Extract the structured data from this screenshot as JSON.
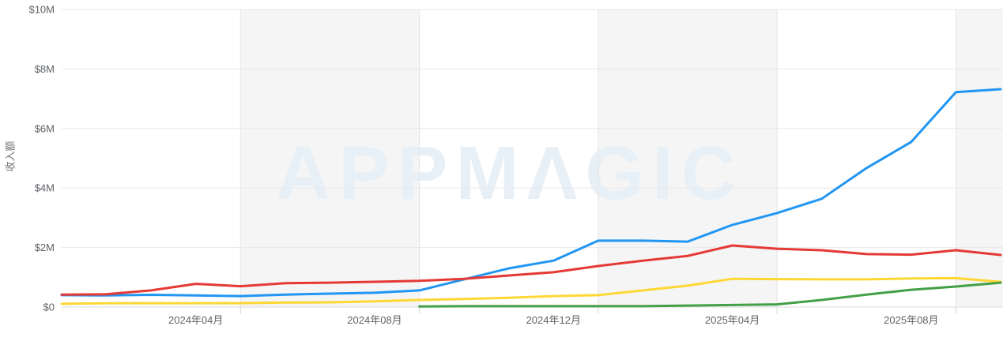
{
  "watermark": {
    "text": "APPMΛGIC",
    "color": "#E8F0F7"
  },
  "axis_style": {
    "tick_label_color": "#5F6368",
    "grid_color": "#E8E8E8",
    "v_grid_color": "#E4E4E4",
    "axis_line_color": "#DBDBDB",
    "tick_mark_color": "#D6D6D6"
  },
  "chart_data": {
    "type": "line",
    "title": "",
    "xlabel": "",
    "ylabel": "收入额",
    "ylim": [
      0,
      10
    ],
    "grid": true,
    "legend": "none",
    "band_color": "#F5F5F5",
    "band_start_indices": [
      4,
      12,
      20
    ],
    "band_span_months": 4,
    "v_gridline_indices": [
      4,
      8,
      12,
      16,
      20
    ],
    "x": [
      "2024年01月",
      "2024年02月",
      "2024年03月",
      "2024年04月",
      "2024年05月",
      "2024年06月",
      "2024年07月",
      "2024年08月",
      "2024年09月",
      "2024年10月",
      "2024年11月",
      "2024年12月",
      "2025年01月",
      "2025年02月",
      "2025年03月",
      "2025年04月",
      "2025年05月",
      "2025年06月",
      "2025年07月",
      "2025年08月",
      "2025年09月",
      "2025年10月"
    ],
    "x_tick_indices": [
      3,
      7,
      11,
      15,
      19
    ],
    "x_tick_labels": [
      "2024年04月",
      "2024年08月",
      "2024年12月",
      "2025年04月",
      "2025年08月"
    ],
    "y_ticks": [
      {
        "value": 0,
        "label": "$0"
      },
      {
        "value": 2,
        "label": "$2M"
      },
      {
        "value": 4,
        "label": "$4M"
      },
      {
        "value": 6,
        "label": "$6M"
      },
      {
        "value": 8,
        "label": "$8M"
      },
      {
        "value": 10,
        "label": "$10M"
      }
    ],
    "value_unit": "USD millions",
    "series": [
      {
        "name": "blue",
        "color": "#2196F3",
        "values": [
          0.4,
          0.39,
          0.41,
          0.39,
          0.37,
          0.42,
          0.45,
          0.48,
          0.56,
          0.93,
          1.3,
          1.56,
          2.23,
          2.23,
          2.2,
          2.76,
          3.16,
          3.64,
          4.67,
          5.55,
          7.22,
          7.32
        ]
      },
      {
        "name": "red",
        "color": "#E53935",
        "values": [
          0.42,
          0.43,
          0.56,
          0.78,
          0.7,
          0.8,
          0.82,
          0.85,
          0.88,
          0.95,
          1.06,
          1.17,
          1.38,
          1.56,
          1.72,
          2.07,
          1.96,
          1.91,
          1.78,
          1.76,
          1.91,
          1.75
        ]
      },
      {
        "name": "yellow",
        "color": "#FDD835",
        "values": [
          0.11,
          0.13,
          0.13,
          0.13,
          0.13,
          0.15,
          0.16,
          0.19,
          0.24,
          0.27,
          0.31,
          0.37,
          0.4,
          0.56,
          0.72,
          0.95,
          0.94,
          0.93,
          0.93,
          0.96,
          0.97,
          0.85
        ]
      },
      {
        "name": "green",
        "color": "#43A047",
        "values": [
          null,
          null,
          null,
          null,
          null,
          null,
          null,
          null,
          0.02,
          0.03,
          0.03,
          0.03,
          0.03,
          0.03,
          0.05,
          0.07,
          0.09,
          0.24,
          0.42,
          0.58,
          0.69,
          0.82
        ]
      }
    ]
  }
}
